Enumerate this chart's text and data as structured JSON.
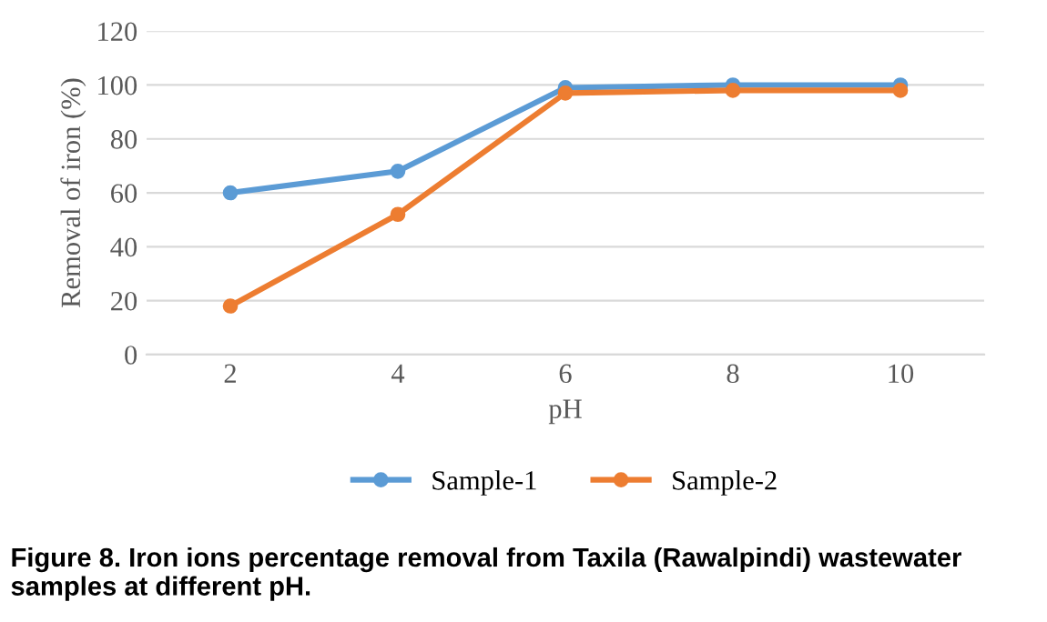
{
  "chart_data": {
    "type": "line",
    "xlabel": "pH",
    "ylabel": "Removal of iron (%)",
    "categories": [
      "2",
      "4",
      "6",
      "8",
      "10"
    ],
    "series": [
      {
        "name": "Sample-1",
        "color": "#5b9bd5",
        "values": [
          60,
          68,
          99,
          100,
          100
        ]
      },
      {
        "name": "Sample-2",
        "color": "#ed7d31",
        "values": [
          18,
          52,
          97,
          98,
          98
        ]
      }
    ],
    "ylim": [
      0,
      120
    ],
    "yticks": [
      0,
      20,
      40,
      60,
      80,
      100,
      120
    ],
    "grid": "y",
    "legend": "bottom",
    "marker": "circle",
    "line_style": "solid",
    "annotations": [
      "Figure 8. Iron ions percentage removal from Taxila (Rawalpindi) wastewater samples at different pH."
    ]
  }
}
